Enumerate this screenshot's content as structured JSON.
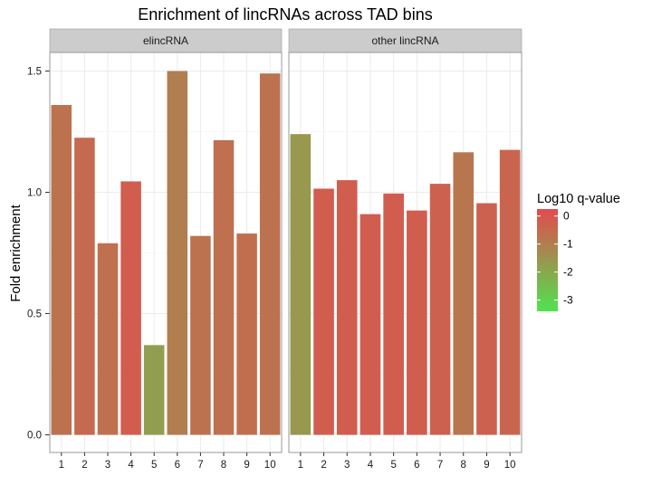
{
  "chart_data": {
    "type": "bar",
    "title": "Enrichment of lincRNAs across TAD bins",
    "ylabel": "Fold enrichment",
    "xlabel": "",
    "ylim": [
      0,
      1.6
    ],
    "y_ticks": [
      0.0,
      0.5,
      1.0,
      1.5
    ],
    "y_tick_labels": [
      "0.0",
      "0.5",
      "1.0",
      "1.5"
    ],
    "categories": [
      "1",
      "2",
      "3",
      "4",
      "5",
      "6",
      "7",
      "8",
      "9",
      "10"
    ],
    "grid": true,
    "facets": [
      {
        "label": "elincRNA",
        "values": [
          1.36,
          1.225,
          0.79,
          1.045,
          0.37,
          1.5,
          0.82,
          1.215,
          0.83,
          1.49
        ],
        "log10_qvalue": [
          -0.7,
          -0.5,
          -0.65,
          -0.2,
          -1.75,
          -1.0,
          -0.7,
          -0.65,
          -0.6,
          -0.7
        ]
      },
      {
        "label": "other lincRNA",
        "values": [
          1.24,
          1.015,
          1.05,
          0.91,
          0.995,
          0.925,
          1.035,
          1.165,
          0.955,
          1.175
        ],
        "log10_qvalue": [
          -1.6,
          -0.2,
          -0.2,
          -0.2,
          -0.2,
          -0.2,
          -0.3,
          -0.8,
          -0.3,
          -0.4
        ]
      }
    ],
    "legend": {
      "title": "Log10 q-value",
      "position": "right",
      "ticks": [
        0,
        -1,
        -2,
        -3
      ],
      "tick_labels": [
        "0",
        "-1",
        "-2",
        "-3"
      ],
      "color_high": "#e34a4f",
      "color_low": "#4fe34f",
      "range": [
        0.25,
        -3.4
      ]
    }
  }
}
